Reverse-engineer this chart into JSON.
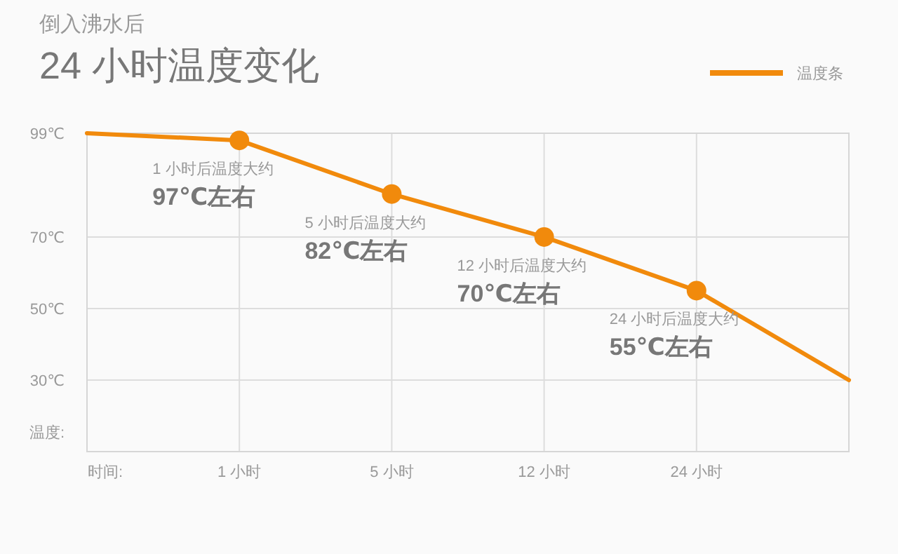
{
  "chart_data": {
    "type": "line",
    "subtitle": "倒入沸水后",
    "title": "24 小时温度变化",
    "ylabel": "温度:",
    "xlabel": "时间:",
    "categories": [
      null,
      "1 小时",
      "5 小时",
      "12 小时",
      "24 小时",
      null
    ],
    "series": [
      {
        "name": "温度条",
        "color": "#f18a0c",
        "values": [
          99,
          97,
          82,
          70,
          55,
          30
        ],
        "marker": "none"
      },
      {
        "type": "scatter",
        "color": "#f18a0c",
        "values": [
          null,
          97,
          82,
          70,
          55,
          null
        ],
        "marker": "circle"
      }
    ],
    "ylim": [
      10,
      99
    ],
    "yticks": [
      {
        "value": 30,
        "label": "30℃"
      },
      {
        "value": 50,
        "label": "50℃"
      },
      {
        "value": 70,
        "label": "70℃"
      },
      {
        "value": 99,
        "label": "99℃"
      }
    ],
    "grid": true,
    "legend": "top right",
    "line_style": "solid",
    "annotations": [
      {
        "text": "1 小时后温度大约",
        "x": "1 小时",
        "y": 97
      },
      {
        "text": "97℃左右",
        "x": "1 小时",
        "y": 97
      },
      {
        "text": "5 小时后温度大约",
        "x": "5 小时",
        "y": 82
      },
      {
        "text": "82℃左右",
        "x": "5 小时",
        "y": 82
      },
      {
        "text": "12 小时后温度大约",
        "x": "12 小时",
        "y": 70
      },
      {
        "text": "70℃左右",
        "x": "12 小时",
        "y": 70
      },
      {
        "text": "24 小时后温度大约",
        "x": "24 小时",
        "y": 55
      },
      {
        "text": "55℃左右",
        "x": "24 小时",
        "y": 55
      }
    ]
  }
}
